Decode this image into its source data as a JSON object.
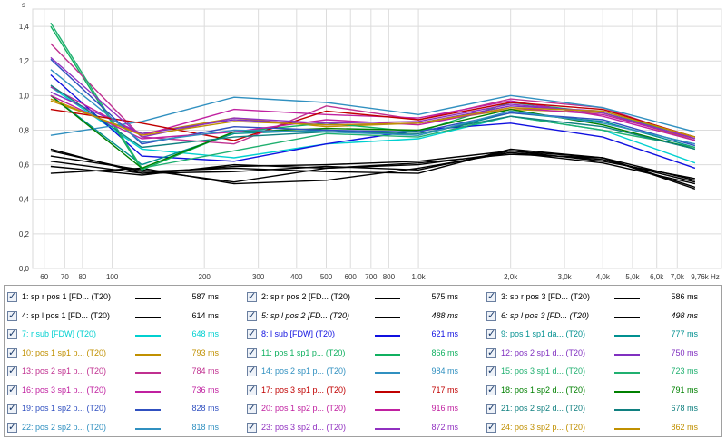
{
  "chart_data": {
    "type": "line",
    "xscale": "log",
    "ylabel": "s",
    "xunit": "Hz",
    "ylim": [
      0,
      1.5
    ],
    "xlim": [
      55,
      9760
    ],
    "yticks": [
      0,
      0.2,
      0.4,
      0.6,
      0.8,
      1.0,
      1.2,
      1.4
    ],
    "ytick_labels": [
      "0,0",
      "0,2",
      "0,4",
      "0,6",
      "0,8",
      "1,0",
      "1,2",
      "1,4"
    ],
    "xticks": [
      60,
      70,
      80,
      100,
      200,
      300,
      400,
      500,
      600,
      700,
      800,
      1000,
      2000,
      3000,
      4000,
      5000,
      6000,
      7000,
      9760
    ],
    "xtick_labels": [
      "60",
      "70",
      "80",
      "100",
      "200",
      "300",
      "400",
      "500",
      "600",
      "700",
      "800",
      "1,0k",
      "2,0k",
      "3,0k",
      "4,0k",
      "5,0k",
      "6,0k",
      "7,0k",
      "9,76k Hz"
    ],
    "x": [
      63,
      125,
      250,
      500,
      1000,
      2000,
      4000,
      8000
    ],
    "grid": true,
    "series": [
      {
        "name": "1: sp r pos 1 [FD... (T20)",
        "value": "587 ms",
        "color": "#000000",
        "italic": false,
        "values": [
          0.68,
          0.56,
          0.58,
          0.56,
          0.55,
          0.69,
          0.64,
          0.47
        ]
      },
      {
        "name": "2: sp r pos 2 [FD... (T20)",
        "value": "575 ms",
        "color": "#000000",
        "italic": false,
        "values": [
          0.65,
          0.57,
          0.5,
          0.58,
          0.6,
          0.67,
          0.63,
          0.5
        ]
      },
      {
        "name": "3: sp r pos 3 [FD... (T20)",
        "value": "586 ms",
        "color": "#000000",
        "italic": false,
        "values": [
          0.62,
          0.55,
          0.56,
          0.59,
          0.57,
          0.68,
          0.62,
          0.52
        ]
      },
      {
        "name": "4: sp l pos 1 [FD... (T20)",
        "value": "614 ms",
        "color": "#000000",
        "italic": false,
        "values": [
          0.59,
          0.54,
          0.6,
          0.58,
          0.61,
          0.66,
          0.64,
          0.46
        ]
      },
      {
        "name": "5: sp l pos 2 [FD... (T20)",
        "value": "488 ms",
        "color": "#000000",
        "italic": true,
        "values": [
          0.55,
          0.58,
          0.49,
          0.51,
          0.58,
          0.67,
          0.61,
          0.49
        ]
      },
      {
        "name": "6: sp l pos 3 [FD... (T20)",
        "value": "498 ms",
        "color": "#000000",
        "italic": true,
        "values": [
          0.69,
          0.55,
          0.59,
          0.6,
          0.62,
          0.68,
          0.64,
          0.51
        ]
      },
      {
        "name": "7: r sub [FDW] (T20)",
        "value": "648 ms",
        "color": "#00d0d0",
        "italic": false,
        "values": [
          1.05,
          0.69,
          0.64,
          0.72,
          0.75,
          0.88,
          0.8,
          0.61
        ]
      },
      {
        "name": "8: l sub [FDW] (T20)",
        "value": "621 ms",
        "color": "#1010e0",
        "italic": false,
        "values": [
          1.12,
          0.65,
          0.62,
          0.72,
          0.8,
          0.84,
          0.76,
          0.58
        ]
      },
      {
        "name": "9: pos 1 sp1 da... (T20)",
        "value": "777 ms",
        "color": "#009090",
        "italic": false,
        "values": [
          1.0,
          0.6,
          0.78,
          0.8,
          0.77,
          0.9,
          0.85,
          0.7
        ]
      },
      {
        "name": "10: pos 1 sp1 p... (T20)",
        "value": "793 ms",
        "color": "#c09000",
        "italic": false,
        "values": [
          0.97,
          0.78,
          0.87,
          0.82,
          0.84,
          0.92,
          0.9,
          0.74
        ]
      },
      {
        "name": "11: pos 1 sp1 p... (T20)",
        "value": "866 ms",
        "color": "#10b060",
        "italic": false,
        "values": [
          1.4,
          0.57,
          0.79,
          0.84,
          0.79,
          0.96,
          0.9,
          0.76
        ]
      },
      {
        "name": "12: pos 2 sp1 d... (T20)",
        "value": "750 ms",
        "color": "#8030c0",
        "italic": false,
        "values": [
          1.02,
          0.78,
          0.86,
          0.83,
          0.84,
          0.94,
          0.91,
          0.76
        ]
      },
      {
        "name": "13: pos 2 sp1 p... (T20)",
        "value": "784 ms",
        "color": "#c03090",
        "italic": false,
        "values": [
          1.3,
          0.76,
          0.72,
          0.94,
          0.86,
          0.98,
          0.93,
          0.75
        ]
      },
      {
        "name": "14: pos 2 sp1 p... (T20)",
        "value": "984 ms",
        "color": "#3090c0",
        "italic": false,
        "values": [
          0.77,
          0.85,
          0.99,
          0.96,
          0.89,
          1.0,
          0.93,
          0.79
        ]
      },
      {
        "name": "15: pos 3 sp1 d... (T20)",
        "value": "723 ms",
        "color": "#20b070",
        "italic": false,
        "values": [
          1.42,
          0.58,
          0.68,
          0.78,
          0.76,
          0.88,
          0.8,
          0.7
        ]
      },
      {
        "name": "16: pos 3 sp1 p... (T20)",
        "value": "736 ms",
        "color": "#c020a0",
        "italic": false,
        "values": [
          1.05,
          0.77,
          0.92,
          0.89,
          0.87,
          0.97,
          0.88,
          0.74
        ]
      },
      {
        "name": "17: pos 3 sp1 p... (T20)",
        "value": "717 ms",
        "color": "#c00000",
        "italic": false,
        "values": [
          0.92,
          0.84,
          0.74,
          0.91,
          0.86,
          0.96,
          0.92,
          0.76
        ]
      },
      {
        "name": "18: pos 1 sp2 d... (T20)",
        "value": "791 ms",
        "color": "#008000",
        "italic": false,
        "values": [
          1.0,
          0.58,
          0.79,
          0.81,
          0.8,
          0.92,
          0.83,
          0.69
        ]
      },
      {
        "name": "19: pos 1 sp2 p... (T20)",
        "value": "828 ms",
        "color": "#3050c0",
        "italic": false,
        "values": [
          1.21,
          0.72,
          0.82,
          0.8,
          0.79,
          0.9,
          0.86,
          0.71
        ]
      },
      {
        "name": "20: pos 1 sp2 p... (T20)",
        "value": "916 ms",
        "color": "#c020a0",
        "italic": false,
        "values": [
          1.0,
          0.75,
          0.79,
          0.86,
          0.83,
          0.93,
          0.89,
          0.75
        ]
      },
      {
        "name": "21: pos 2 sp2 d... (T20)",
        "value": "678 ms",
        "color": "#108080",
        "italic": false,
        "values": [
          1.06,
          0.7,
          0.76,
          0.79,
          0.78,
          0.88,
          0.82,
          0.69
        ]
      },
      {
        "name": "22: pos 2 sp2 p... (T20)",
        "value": "818 ms",
        "color": "#3090c0",
        "italic": false,
        "values": [
          1.15,
          0.73,
          0.8,
          0.79,
          0.77,
          0.91,
          0.84,
          0.72
        ]
      },
      {
        "name": "23: pos 3 sp2 d... (T20)",
        "value": "872 ms",
        "color": "#9030c0",
        "italic": false,
        "values": [
          1.22,
          0.76,
          0.87,
          0.84,
          0.85,
          0.95,
          0.9,
          0.75
        ]
      },
      {
        "name": "24: pos 3 sp2 p... (T20)",
        "value": "862 ms",
        "color": "#c09000",
        "italic": false,
        "values": [
          0.98,
          0.77,
          0.85,
          0.83,
          0.84,
          0.93,
          0.91,
          0.76
        ]
      }
    ]
  }
}
